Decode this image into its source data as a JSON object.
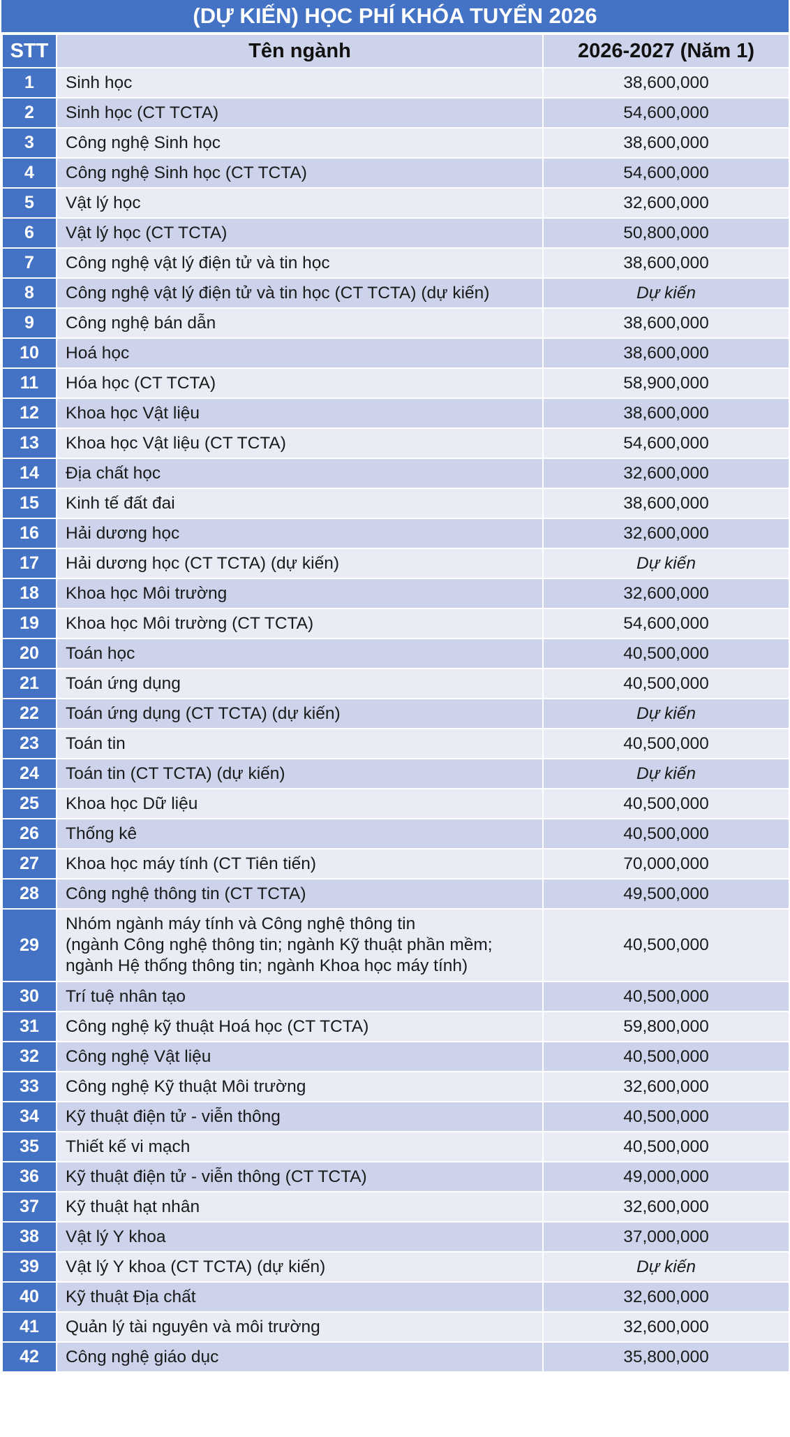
{
  "title": "(DỰ KIẾN) HỌC PHÍ KHÓA TUYỂN 2026",
  "headers": {
    "stt": "STT",
    "name": "Tên ngành",
    "fee": "2026-2027 (Năm 1)"
  },
  "rows": [
    {
      "stt": "1",
      "name": "Sinh học",
      "fee": "38,600,000"
    },
    {
      "stt": "2",
      "name": "Sinh học (CT TCTA)",
      "fee": "54,600,000"
    },
    {
      "stt": "3",
      "name": "Công nghệ Sinh học",
      "fee": "38,600,000"
    },
    {
      "stt": "4",
      "name": "Công nghệ Sinh học (CT TCTA)",
      "fee": "54,600,000"
    },
    {
      "stt": "5",
      "name": "Vật lý học",
      "fee": "32,600,000"
    },
    {
      "stt": "6",
      "name": "Vật lý học (CT TCTA)",
      "fee": "50,800,000"
    },
    {
      "stt": "7",
      "name": "Công nghệ vật lý điện tử và tin học",
      "fee": "38,600,000"
    },
    {
      "stt": "8",
      "name": "Công nghệ vật lý điện tử và tin học (CT TCTA) (dự kiến)",
      "fee": "Dự kiến"
    },
    {
      "stt": "9",
      "name": "Công nghệ bán dẫn",
      "fee": "38,600,000"
    },
    {
      "stt": "10",
      "name": "Hoá học",
      "fee": "38,600,000"
    },
    {
      "stt": "11",
      "name": "Hóa học (CT TCTA)",
      "fee": "58,900,000"
    },
    {
      "stt": "12",
      "name": "Khoa học Vật liệu",
      "fee": "38,600,000"
    },
    {
      "stt": "13",
      "name": "Khoa học Vật liệu (CT TCTA)",
      "fee": "54,600,000"
    },
    {
      "stt": "14",
      "name": "Địa chất học",
      "fee": "32,600,000"
    },
    {
      "stt": "15",
      "name": "Kinh tế đất đai",
      "fee": "38,600,000"
    },
    {
      "stt": "16",
      "name": "Hải dương học",
      "fee": "32,600,000"
    },
    {
      "stt": "17",
      "name": "Hải dương học (CT TCTA) (dự kiến)",
      "fee": "Dự kiến"
    },
    {
      "stt": "18",
      "name": "Khoa học Môi trường",
      "fee": "32,600,000"
    },
    {
      "stt": "19",
      "name": "Khoa học Môi trường (CT TCTA)",
      "fee": "54,600,000"
    },
    {
      "stt": "20",
      "name": "Toán học",
      "fee": "40,500,000"
    },
    {
      "stt": "21",
      "name": "Toán ứng dụng",
      "fee": "40,500,000"
    },
    {
      "stt": "22",
      "name": "Toán ứng dụng (CT TCTA) (dự kiến)",
      "fee": "Dự kiến"
    },
    {
      "stt": "23",
      "name": "Toán tin",
      "fee": "40,500,000"
    },
    {
      "stt": "24",
      "name": "Toán tin (CT TCTA) (dự kiến)",
      "fee": "Dự kiến"
    },
    {
      "stt": "25",
      "name": "Khoa học Dữ liệu",
      "fee": "40,500,000"
    },
    {
      "stt": "26",
      "name": "Thống kê",
      "fee": "40,500,000"
    },
    {
      "stt": "27",
      "name": "Khoa học máy tính (CT Tiên tiến)",
      "fee": "70,000,000"
    },
    {
      "stt": "28",
      "name": "Công nghệ thông tin (CT TCTA)",
      "fee": "49,500,000"
    },
    {
      "stt": "29",
      "name": "Nhóm ngành máy tính và Công nghệ thông tin",
      "name2": "(ngành Công nghệ thông tin; ngành Kỹ thuật phần mềm;",
      "name3": "ngành Hệ thống thông tin; ngành Khoa học máy tính)",
      "fee": "40,500,000"
    },
    {
      "stt": "30",
      "name": "Trí tuệ nhân tạo",
      "fee": "40,500,000"
    },
    {
      "stt": "31",
      "name": "Công nghệ kỹ thuật Hoá học (CT TCTA)",
      "fee": "59,800,000"
    },
    {
      "stt": "32",
      "name": "Công nghệ Vật liệu",
      "fee": "40,500,000"
    },
    {
      "stt": "33",
      "name": "Công nghệ Kỹ thuật Môi trường",
      "fee": "32,600,000"
    },
    {
      "stt": "34",
      "name": "Kỹ thuật điện tử - viễn thông",
      "fee": "40,500,000"
    },
    {
      "stt": "35",
      "name": "Thiết kế vi mạch",
      "fee": "40,500,000"
    },
    {
      "stt": "36",
      "name": "Kỹ thuật điện tử - viễn thông (CT TCTA)",
      "fee": "49,000,000"
    },
    {
      "stt": "37",
      "name": "Kỹ thuật hạt nhân",
      "fee": "32,600,000"
    },
    {
      "stt": "38",
      "name": "Vật lý Y khoa",
      "fee": "37,000,000"
    },
    {
      "stt": "39",
      "name": "Vật lý Y khoa (CT TCTA) (dự kiến)",
      "fee": "Dự kiến"
    },
    {
      "stt": "40",
      "name": "Kỹ thuật Địa chất",
      "fee": "32,600,000"
    },
    {
      "stt": "41",
      "name": "Quản lý tài nguyên và môi trường",
      "fee": "32,600,000"
    },
    {
      "stt": "42",
      "name": "Công nghệ giáo dục",
      "fee": "35,800,000"
    }
  ]
}
